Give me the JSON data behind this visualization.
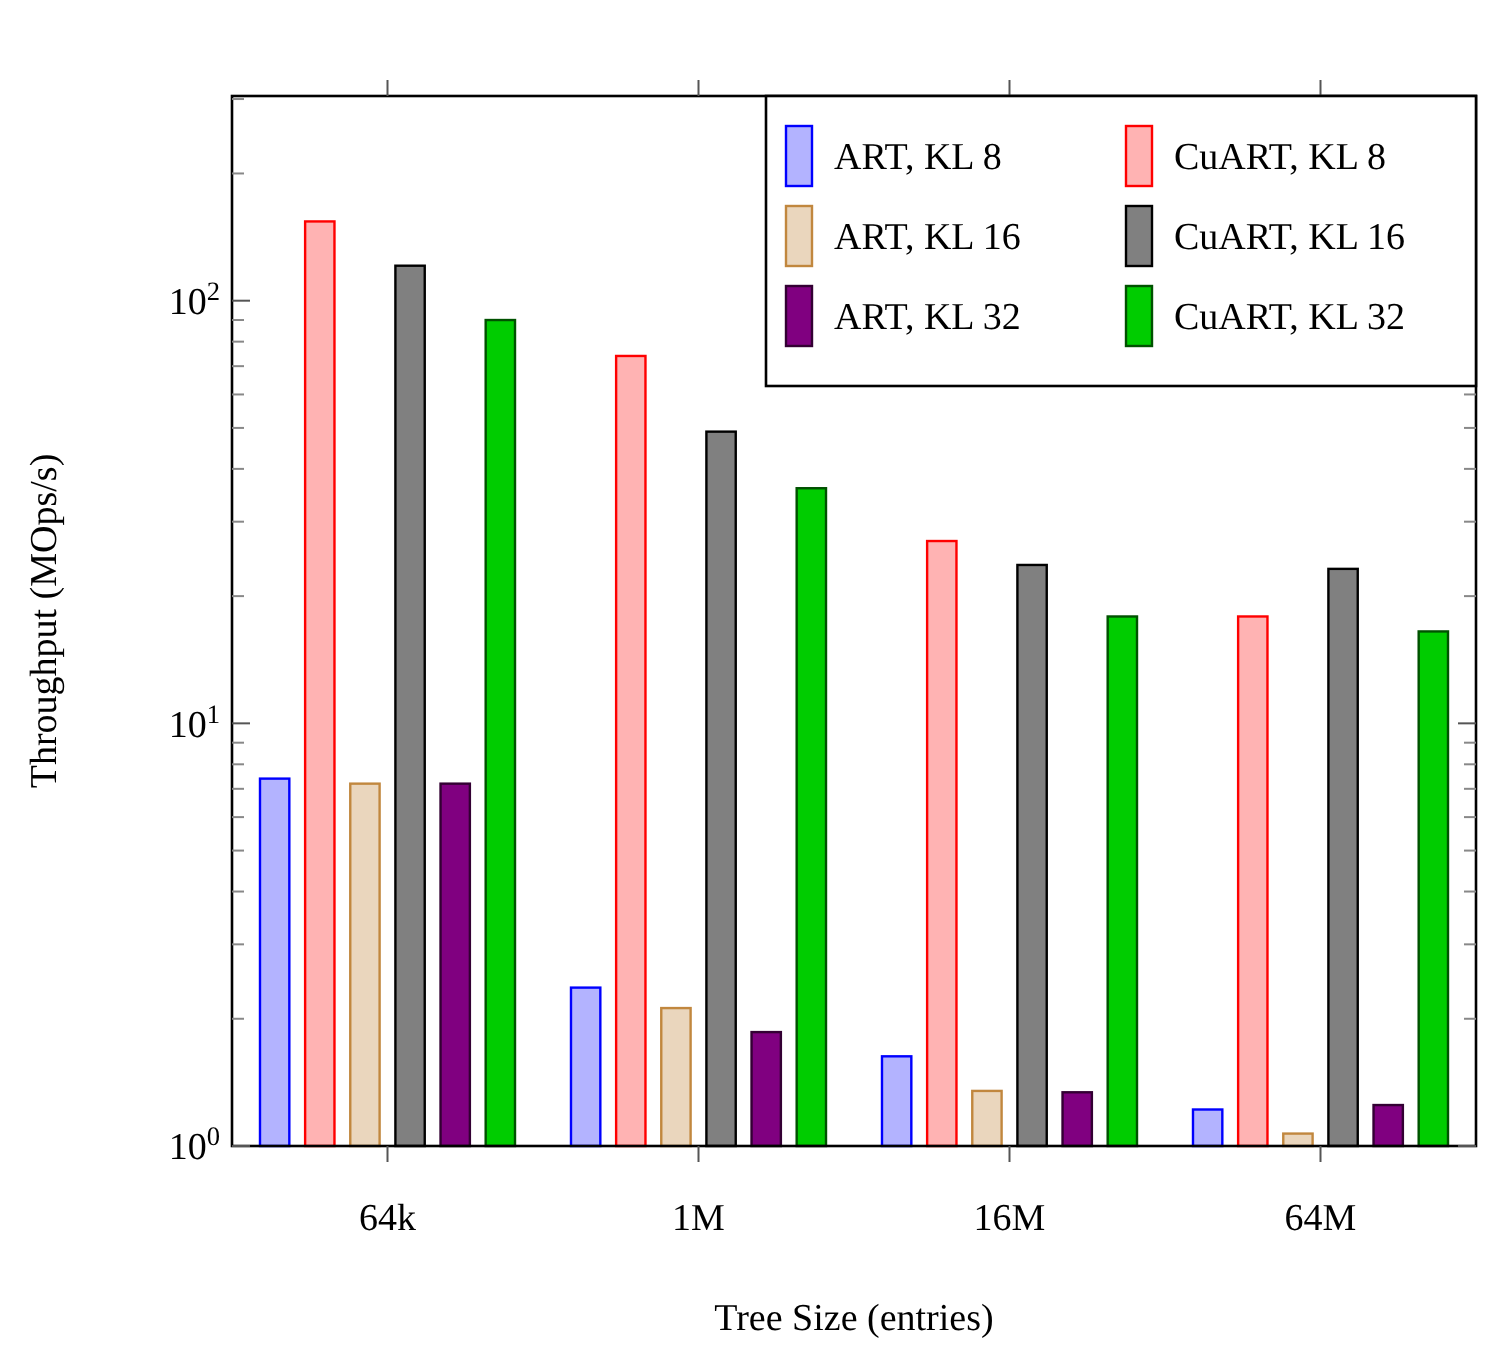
{
  "chart_data": {
    "type": "bar",
    "xlabel": "Tree Size (entries)",
    "ylabel": "Throughput (MOps/s)",
    "categories": [
      "64k",
      "1M",
      "16M",
      "64M"
    ],
    "log": true,
    "ylim": [
      1,
      305
    ],
    "yticks": [
      {
        "value": 1,
        "label": "10$^{0}$"
      },
      {
        "value": 10,
        "label": "10$^{1}$"
      },
      {
        "value": 100,
        "label": "10$^{2}$"
      }
    ],
    "legend": "top right",
    "grid": false,
    "series": [
      {
        "name": "ART, KL 8",
        "color": "#b3b3ff",
        "values": [
          7.4,
          2.37,
          1.63,
          1.22
        ]
      },
      {
        "name": "CuART, KL 8",
        "color": "#ffb3b3",
        "values": [
          154,
          74,
          27,
          17.9
        ]
      },
      {
        "name": "ART, KL 16",
        "color": "#ead6bd",
        "values": [
          7.2,
          2.12,
          1.35,
          1.07
        ]
      },
      {
        "name": "CuART, KL 16",
        "color": "#808080",
        "values": [
          121,
          49,
          23.7,
          23.2
        ]
      },
      {
        "name": "ART, KL 32",
        "color": "#800080",
        "values": [
          7.2,
          1.86,
          1.34,
          1.25
        ]
      },
      {
        "name": "CuART, KL 32",
        "color": "#00cc00",
        "values": [
          90,
          36,
          17.9,
          16.5
        ]
      }
    ]
  }
}
